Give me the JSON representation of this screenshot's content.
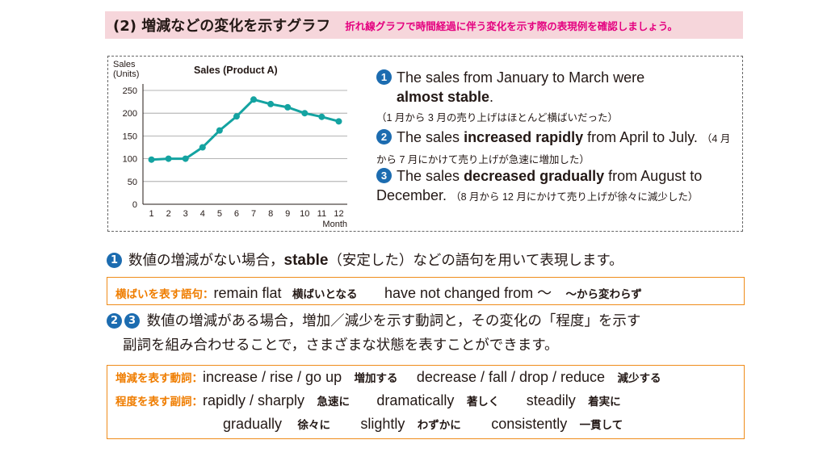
{
  "header": {
    "title": "(2) 増減などの変化を示すグラフ",
    "subtitle": "折れ線グラフで時間経過に伴う変化を示す際の表現例を確認しましょう。"
  },
  "chart_data": {
    "type": "line",
    "title": "Sales (Product A)",
    "ylabel_line1": "Sales",
    "ylabel_line2": "(Units)",
    "xlabel": "Month",
    "categories": [
      "1",
      "2",
      "3",
      "4",
      "5",
      "6",
      "7",
      "8",
      "9",
      "10",
      "11",
      "12"
    ],
    "values": [
      98,
      100,
      100,
      125,
      162,
      193,
      230,
      220,
      213,
      200,
      192,
      182
    ],
    "ylim": [
      0,
      250
    ],
    "yticks": [
      "0",
      "50",
      "100",
      "150",
      "200",
      "250"
    ],
    "grid": true,
    "line_color": "#14a3a1"
  },
  "descriptions": [
    {
      "num": "1",
      "pre": "The sales from January to March were",
      "bold": "almost stable",
      "post": ".",
      "jp": "（1 月から 3 月の売り上げはほとんど横ばいだった）"
    },
    {
      "num": "2",
      "pre": "The sales",
      "bold": "increased rapidly",
      "post": "from April to July.",
      "jp": "（4 月から 7 月にかけて売り上げが急速に増加した）"
    },
    {
      "num": "3",
      "pre": "The sales",
      "bold": "decreased gradually",
      "post": "from August to December.",
      "jp": "（8 月から 12 月にかけて売り上げが徐々に減少した）"
    }
  ],
  "section1": {
    "num": "1",
    "pre": "数値の増減がない場合，",
    "keyword": "stable",
    "post": "（安定した）などの語句を用いて表現します。"
  },
  "box1": {
    "label": "横ばいを表す語句：",
    "items": [
      {
        "en": "remain flat",
        "jp": "横ばいとなる"
      },
      {
        "en": "have not changed from ～",
        "jp": "～から変わらず"
      }
    ]
  },
  "section23": {
    "num_a": "2",
    "num_b": "3",
    "line1": "数値の増減がある場合，増加／減少を示す動詞と，その変化の「程度」を示す",
    "line2": "副詞を組み合わせることで，さまざまな状態を表すことができます。"
  },
  "box2": {
    "verbs_label": "増減を表す動詞：",
    "verbs": [
      {
        "en": "increase / rise / go up",
        "jp": "増加する"
      },
      {
        "en": "decrease / fall / drop / reduce",
        "jp": "減少する"
      }
    ],
    "adverbs_label": "程度を表す副詞：",
    "adverbs_row1": [
      {
        "en": "rapidly / sharply",
        "jp": "急速に"
      },
      {
        "en": "dramatically",
        "jp": "著しく"
      },
      {
        "en": "steadily",
        "jp": "着実に"
      }
    ],
    "adverbs_row2": [
      {
        "en": "gradually",
        "jp": "徐々に"
      },
      {
        "en": "slightly",
        "jp": "わずかに"
      },
      {
        "en": "consistently",
        "jp": "一貫して"
      }
    ]
  }
}
